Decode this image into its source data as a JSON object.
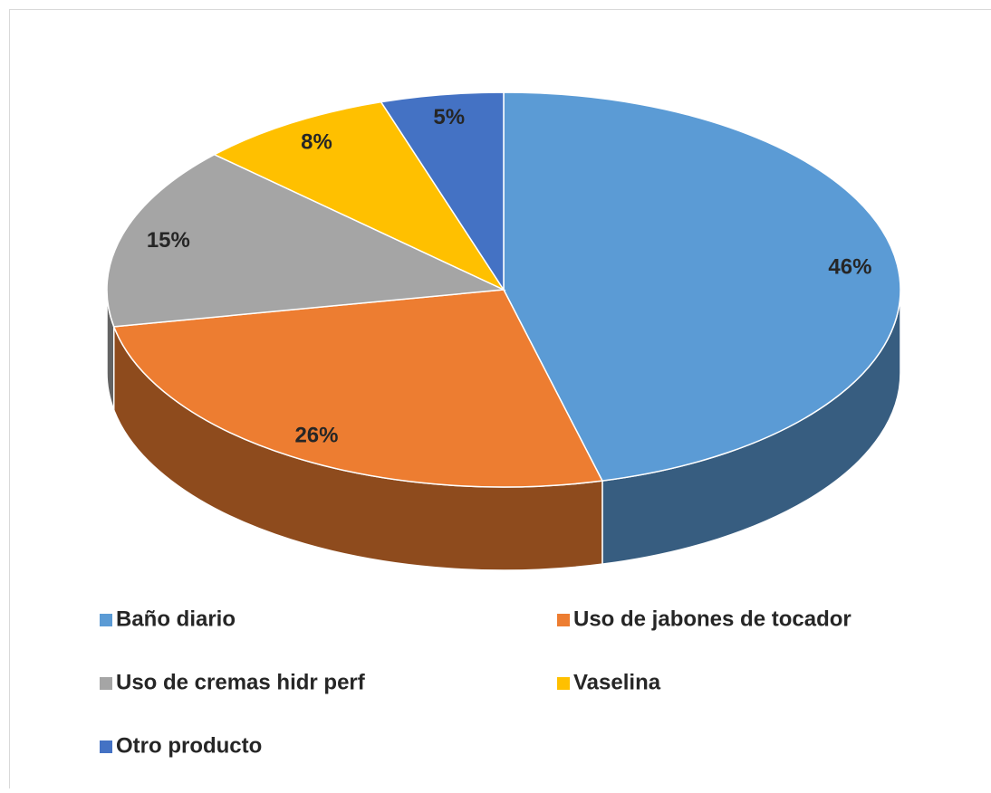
{
  "chart_data": {
    "type": "pie",
    "categories": [
      "Baño diario",
      "Uso de jabones de tocador",
      "Uso de cremas hidr perf",
      "Vaselina",
      "Otro producto"
    ],
    "values": [
      46,
      26,
      15,
      8,
      5
    ],
    "value_labels": [
      "46%",
      "26%",
      "15%",
      "8%",
      "5%"
    ],
    "colors": [
      "#5b9bd5",
      "#ed7d31",
      "#a5a5a5",
      "#ffc000",
      "#4472c4"
    ],
    "legend": "bottom"
  }
}
